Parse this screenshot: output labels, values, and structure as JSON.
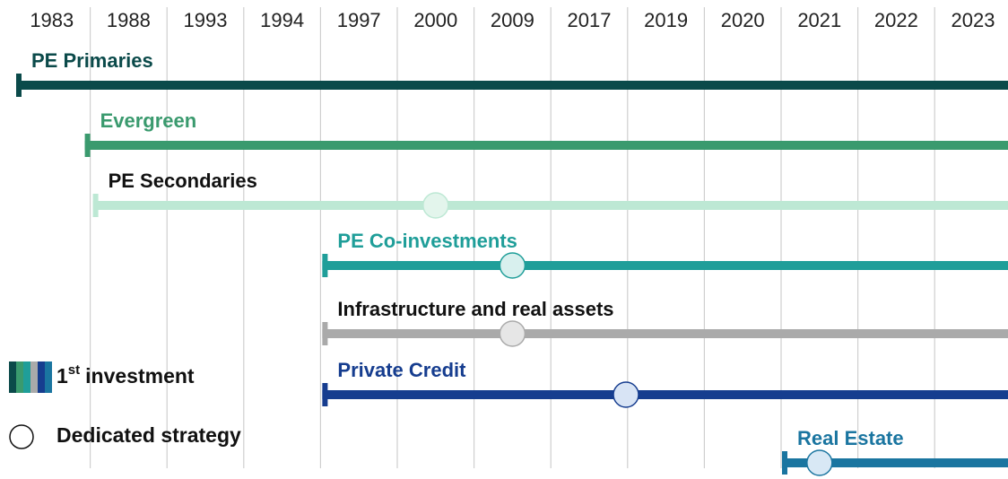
{
  "years": [
    1983,
    1988,
    1993,
    1994,
    1997,
    2000,
    2009,
    2017,
    2019,
    2020,
    2021,
    2022,
    2023
  ],
  "tracks": [
    {
      "label": "PE Primaries",
      "color": "#0b4a4a",
      "label_color": "#0b4a4a",
      "start": 1983
    },
    {
      "label": "Evergreen",
      "color": "#3a9a6e",
      "label_color": "#3a9a6e",
      "start": 1988
    },
    {
      "label": "PE Secondaries",
      "color": "#bde8d4",
      "label_color": "#111111",
      "start": 1988,
      "dedicated": 2000,
      "dedicated_fill": "#e3f5ec"
    },
    {
      "label": "PE Co-investments",
      "color": "#1f9e99",
      "label_color": "#1f9e99",
      "start": 1997,
      "dedicated": 2009,
      "dedicated_fill": "#d8f0ee"
    },
    {
      "label": "Infrastructure and real assets",
      "color": "#aaaaaa",
      "label_color": "#111111",
      "start": 1997,
      "dedicated": 2009,
      "dedicated_fill": "#e6e6e6"
    },
    {
      "label": "Private Credit",
      "color": "#163d8f",
      "label_color": "#163d8f",
      "start": 1997,
      "dedicated": 2017,
      "dedicated_fill": "#d8e4f5"
    },
    {
      "label": "Real Estate",
      "color": "#1a75a0",
      "label_color": "#1a75a0",
      "start": 2021,
      "dedicated": 2021,
      "dedicated_fill": "#d8e8f5"
    }
  ],
  "legend": {
    "first_main": "1",
    "first_sup": "st",
    "first_rest": "investment",
    "dedicated": "Dedicated strategy"
  }
}
